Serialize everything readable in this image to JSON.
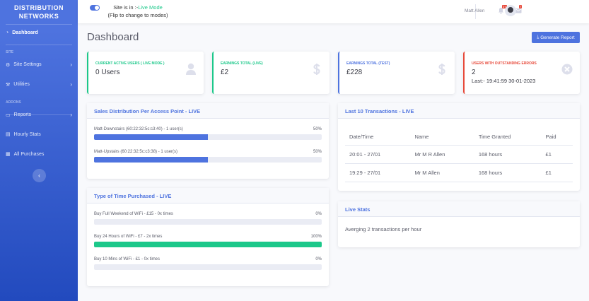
{
  "sidebar": {
    "brand": [
      "DISTRIBUTION",
      "NETWORKS"
    ],
    "items": [
      {
        "label": "Dashboard",
        "icon": "tachometer-icon"
      },
      {
        "label": "Site Settings",
        "icon": "gear-icon"
      },
      {
        "label": "Utilities",
        "icon": "wrench-icon"
      },
      {
        "label": "Reports",
        "icon": "folder-icon"
      },
      {
        "label": "Hourly Stats",
        "icon": "chart-icon"
      },
      {
        "label": "All Purchases",
        "icon": "table-icon"
      }
    ],
    "headings": [
      "SITE",
      "ADDONS"
    ]
  },
  "topbar": {
    "mode_prefix": "Site is in :-",
    "mode_value": "Live Mode",
    "mode_hint": "(Flip to change to modes)",
    "alerts_badge": "3+",
    "messages_badge": "7",
    "user_name": "Matt Allen"
  },
  "page": {
    "title": "Dashboard",
    "generate_report": "Generate Report"
  },
  "cards": [
    {
      "label": "Current Active Users ( Live Mode )",
      "value": "0 Users",
      "color": "#1cc88a"
    },
    {
      "label": "Earnings Total (Live)",
      "value": "£2",
      "color": "#1cc88a"
    },
    {
      "label": "Earnings Total (Test)",
      "value": "£228",
      "color": "#4e73df"
    },
    {
      "label": "Users with outstanding errors",
      "value": "2",
      "sub": "Last:- 19:41:59 30-01-2023",
      "color": "#e74a3b"
    }
  ],
  "sales": {
    "title": "Sales Distribution Per Access Point - LIVE",
    "rows": [
      {
        "label": "Matt-Downstairs (60:22:32:5c:c3:40) - 1 user(s)",
        "pct": "50%",
        "value": 50
      },
      {
        "label": "Matt-Upstairs (60:22:32:5c:c3:38) - 1 user(s)",
        "pct": "50%",
        "value": 50
      }
    ]
  },
  "time": {
    "title": "Type of Time Purchased - LIVE",
    "rows": [
      {
        "label": "Buy Full Weekend of WiFi - £15 - 0x times",
        "pct": "0%",
        "value": 0
      },
      {
        "label": "Buy 24 Hours of WiFi - £7 - 2x times",
        "pct": "100%",
        "value": 100
      },
      {
        "label": "Buy 10 Mins of WiFi - £1 - 0x times",
        "pct": "0%",
        "value": 0
      }
    ]
  },
  "transactions": {
    "title": "Last 10 Transactions - LIVE",
    "columns": [
      "Date/Time",
      "Name",
      "Time Granted",
      "Paid"
    ],
    "rows": [
      [
        "20:01 - 27/01",
        "Mr M R Allen",
        "168 hours",
        "£1"
      ],
      [
        "19:29 - 27/01",
        "Mr M Allen",
        "168 hours",
        "£1"
      ]
    ]
  },
  "live": {
    "title": "Live Stats",
    "text": "Averging 2 transactions per hour"
  }
}
